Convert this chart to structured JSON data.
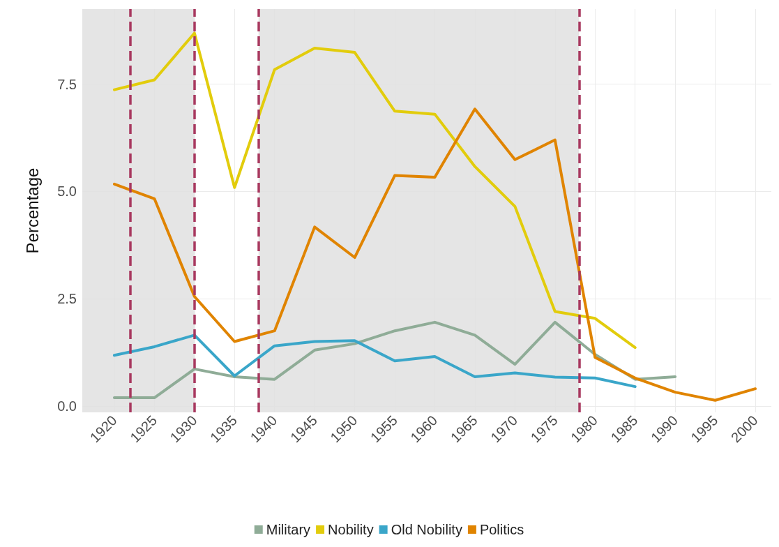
{
  "chart_data": {
    "type": "line",
    "ylabel": "Percentage",
    "x": [
      1920,
      1925,
      1930,
      1935,
      1940,
      1945,
      1950,
      1955,
      1960,
      1965,
      1970,
      1975,
      1980,
      1985,
      1990,
      1995,
      2000
    ],
    "series": [
      {
        "name": "Military",
        "color": "#8fac97",
        "values": [
          0.19,
          0.19,
          0.86,
          0.68,
          0.62,
          1.3,
          1.45,
          1.75,
          1.95,
          1.65,
          0.97,
          1.95,
          1.2,
          0.62,
          0.68,
          null,
          null
        ]
      },
      {
        "name": "Nobility",
        "color": "#e2cc0c",
        "values": [
          7.37,
          7.6,
          8.69,
          5.09,
          7.84,
          8.34,
          8.24,
          6.87,
          6.8,
          5.58,
          4.65,
          2.2,
          2.04,
          1.36,
          null,
          null,
          null
        ]
      },
      {
        "name": "Old Nobility",
        "color": "#3aa6c9",
        "values": [
          1.18,
          1.38,
          1.65,
          0.7,
          1.4,
          1.5,
          1.52,
          1.05,
          1.15,
          0.68,
          0.77,
          0.67,
          0.65,
          0.45,
          null,
          null,
          null
        ]
      },
      {
        "name": "Politics",
        "color": "#e08400",
        "values": [
          5.17,
          4.83,
          2.55,
          1.5,
          1.75,
          4.17,
          3.46,
          5.37,
          5.33,
          6.92,
          5.74,
          6.2,
          1.13,
          0.65,
          0.32,
          0.13,
          0.4
        ]
      }
    ],
    "xlim": [
      1916,
      2002
    ],
    "xticks": [
      1920,
      1925,
      1930,
      1935,
      1940,
      1945,
      1950,
      1955,
      1960,
      1965,
      1970,
      1975,
      1980,
      1985,
      1990,
      1995,
      2000
    ],
    "ylim": [
      -0.15,
      9.25
    ],
    "yticks": [
      {
        "value": 0,
        "label": "0.0"
      },
      2.5,
      {
        "value": 5,
        "label": "5.0"
      },
      7.5
    ],
    "bands": [
      {
        "axis": "x",
        "from": 1916,
        "to": 1930,
        "color": "#e0e0e0"
      },
      {
        "axis": "x",
        "from": 1938,
        "to": 1978,
        "color": "#e0e0e0"
      }
    ],
    "ref_lines": [
      {
        "axis": "x",
        "value": 1922,
        "color": "#a8385f",
        "line_style": "dashed"
      },
      {
        "axis": "x",
        "value": 1930,
        "color": "#a8385f",
        "line_style": "dashed"
      },
      {
        "axis": "x",
        "value": 1938,
        "color": "#a8385f",
        "line_style": "dashed"
      },
      {
        "axis": "x",
        "value": 1978,
        "color": "#a8385f",
        "line_style": "dashed"
      }
    ],
    "grid": true,
    "legend": "bottom",
    "marker": "none",
    "line_style": "solid"
  }
}
